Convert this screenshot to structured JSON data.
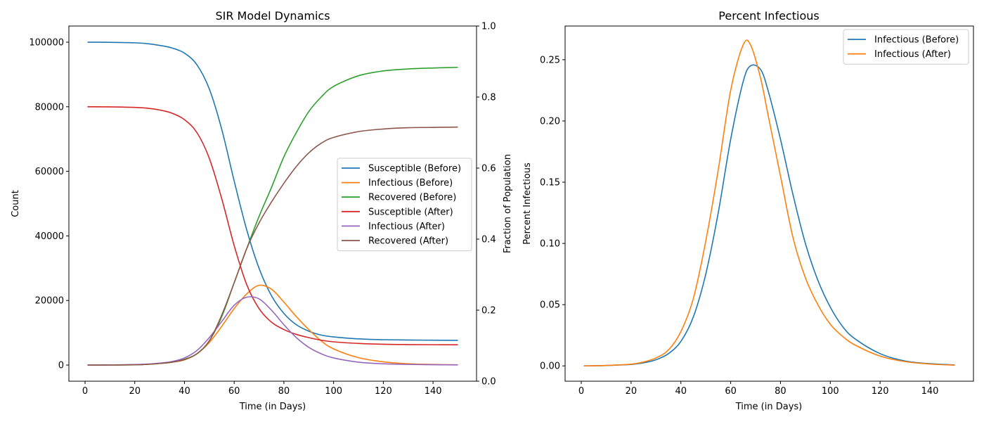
{
  "chart_data": [
    {
      "type": "line",
      "title": "SIR Model Dynamics",
      "xlabel": "Time (in Days)",
      "ylabel": "Count",
      "y2label": "Fraction of Population",
      "xlim": [
        -6.5,
        157.5
      ],
      "ylim": [
        -5000,
        105000
      ],
      "y2lim": [
        0.0,
        1.0
      ],
      "xticks": [
        0,
        20,
        40,
        60,
        80,
        100,
        120,
        140
      ],
      "yticks": [
        0,
        20000,
        40000,
        60000,
        80000,
        100000
      ],
      "y2ticks": [
        0.0,
        0.2,
        0.4,
        0.6,
        0.8,
        1.0
      ],
      "legend": "center-right",
      "x": [
        1,
        10,
        20,
        25,
        30,
        35,
        40,
        45,
        50,
        55,
        60,
        65,
        70,
        75,
        80,
        85,
        90,
        95,
        100,
        110,
        120,
        130,
        140,
        150
      ],
      "series": [
        {
          "name": "Susceptible (Before)",
          "color": "#1f77b4",
          "values": [
            100000,
            99960,
            99800,
            99550,
            99000,
            98200,
            96600,
            93000,
            85500,
            73000,
            57000,
            42000,
            30000,
            21500,
            16000,
            12500,
            10500,
            9300,
            8700,
            8100,
            7850,
            7750,
            7700,
            7650
          ]
        },
        {
          "name": "Infectious (Before)",
          "color": "#ff7f0e",
          "values": [
            10,
            30,
            120,
            250,
            500,
            900,
            1600,
            3500,
            7000,
            12000,
            17500,
            22000,
            24700,
            23500,
            19500,
            15000,
            11000,
            7500,
            5000,
            2300,
            1000,
            400,
            180,
            80
          ]
        },
        {
          "name": "Recovered (Before)",
          "color": "#2ca02c",
          "values": [
            0,
            10,
            80,
            200,
            500,
            900,
            1800,
            3500,
            7500,
            15000,
            25500,
            36000,
            46000,
            55000,
            64500,
            72000,
            78500,
            83000,
            86300,
            89600,
            91100,
            91700,
            92000,
            92200
          ]
        },
        {
          "name": "Susceptible (After)",
          "color": "#d62728",
          "values": [
            80000,
            79970,
            79800,
            79550,
            79000,
            78000,
            76000,
            72000,
            64000,
            51500,
            37000,
            25000,
            17500,
            13300,
            11000,
            9500,
            8500,
            7700,
            7200,
            6700,
            6450,
            6350,
            6300,
            6280
          ]
        },
        {
          "name": "Infectious (After)",
          "color": "#9467bd",
          "values": [
            10,
            40,
            150,
            300,
            600,
            1100,
            2200,
            4500,
            8500,
            13500,
            18500,
            21000,
            20500,
            17000,
            12500,
            8500,
            5500,
            3500,
            2200,
            900,
            400,
            200,
            100,
            50
          ]
        },
        {
          "name": "Recovered (After)",
          "color": "#8c564b",
          "values": [
            0,
            10,
            80,
            200,
            500,
            900,
            1700,
            3500,
            7500,
            15500,
            25500,
            36000,
            44000,
            50500,
            56300,
            61500,
            65700,
            68700,
            70500,
            72300,
            73100,
            73500,
            73600,
            73700
          ]
        }
      ]
    },
    {
      "type": "line",
      "title": "Percent Infectious",
      "xlabel": "Time (in Days)",
      "ylabel": "Percent Infectious",
      "xlim": [
        -6.5,
        157.5
      ],
      "ylim": [
        -0.0125,
        0.2775
      ],
      "xticks": [
        0,
        20,
        40,
        60,
        80,
        100,
        120,
        140
      ],
      "yticks": [
        0.0,
        0.05,
        0.1,
        0.15,
        0.2,
        0.25
      ],
      "legend": "top-right",
      "x": [
        1,
        10,
        20,
        25,
        30,
        35,
        40,
        45,
        50,
        55,
        60,
        65,
        68,
        72,
        75,
        80,
        85,
        90,
        95,
        100,
        105,
        110,
        120,
        130,
        140,
        150
      ],
      "series": [
        {
          "name": "Infectious (Before)",
          "color": "#1f77b4",
          "values": [
            0.0,
            0.0003,
            0.0012,
            0.0025,
            0.005,
            0.01,
            0.02,
            0.04,
            0.075,
            0.125,
            0.185,
            0.232,
            0.245,
            0.242,
            0.225,
            0.185,
            0.14,
            0.1,
            0.07,
            0.048,
            0.032,
            0.022,
            0.01,
            0.004,
            0.0018,
            0.0008
          ]
        },
        {
          "name": "Infectious (After)",
          "color": "#ff7f0e",
          "values": [
            0.0,
            0.0004,
            0.0014,
            0.0032,
            0.0065,
            0.013,
            0.028,
            0.055,
            0.102,
            0.16,
            0.225,
            0.262,
            0.262,
            0.235,
            0.205,
            0.155,
            0.105,
            0.072,
            0.05,
            0.034,
            0.024,
            0.017,
            0.008,
            0.0035,
            0.0015,
            0.0006
          ]
        }
      ]
    }
  ]
}
